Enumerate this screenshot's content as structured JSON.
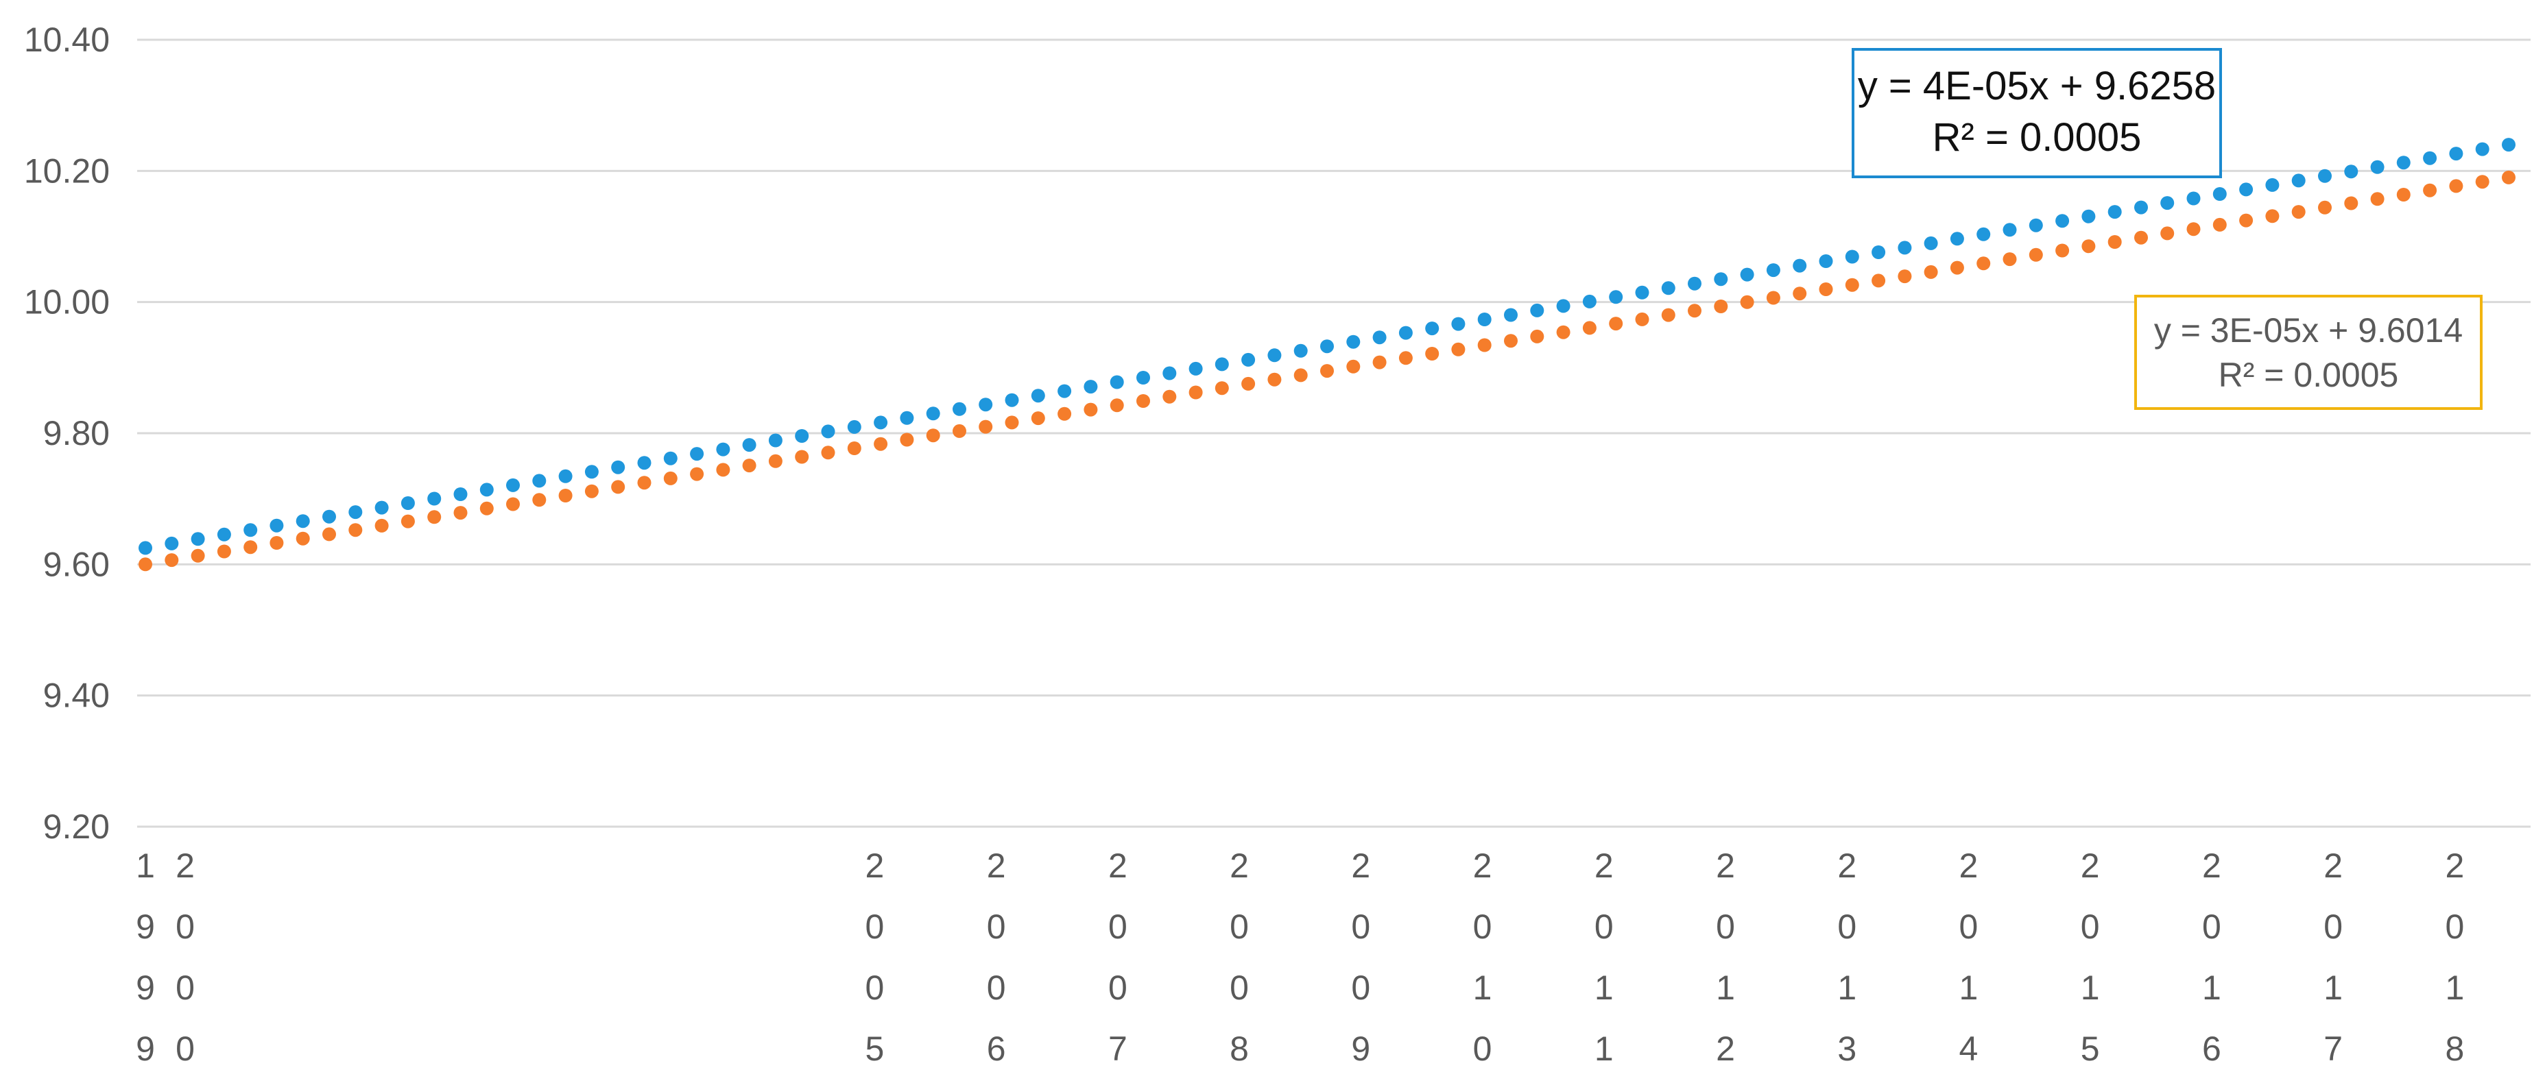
{
  "chart_data": {
    "type": "scatter",
    "ylim": [
      9.2,
      10.4
    ],
    "yticks": [
      "10.40",
      "10.20",
      "10.00",
      "9.80",
      "9.60",
      "9.40",
      "9.20"
    ],
    "grid": true,
    "x_tick_labels": [
      "1999",
      "2000",
      "2005",
      "2006",
      "2007",
      "2008",
      "2009",
      "2010",
      "2011",
      "2012",
      "2013",
      "2014",
      "2015",
      "2016",
      "2017",
      "2018"
    ],
    "x_tick_positions": [
      1999,
      2000,
      2005,
      2006,
      2007,
      2008,
      2009,
      2010,
      2011,
      2012,
      2013,
      2014,
      2015,
      2016,
      2017,
      2018
    ],
    "xlim": [
      1999,
      2018.5
    ],
    "series": [
      {
        "color": "#1f97dc",
        "start": 9.625,
        "end": 10.24,
        "points": 91,
        "trendline": {
          "equation": "y = 4E-05x + 9.6258",
          "r2": "R² = 0.0005",
          "box_color": "#1b8ad0"
        }
      },
      {
        "color": "#f57d2b",
        "start": 9.6,
        "end": 10.19,
        "points": 91,
        "trendline": {
          "equation": "y = 3E-05x + 9.6014",
          "r2": "R² = 0.0005",
          "box_color": "#f2b50f"
        }
      }
    ]
  }
}
